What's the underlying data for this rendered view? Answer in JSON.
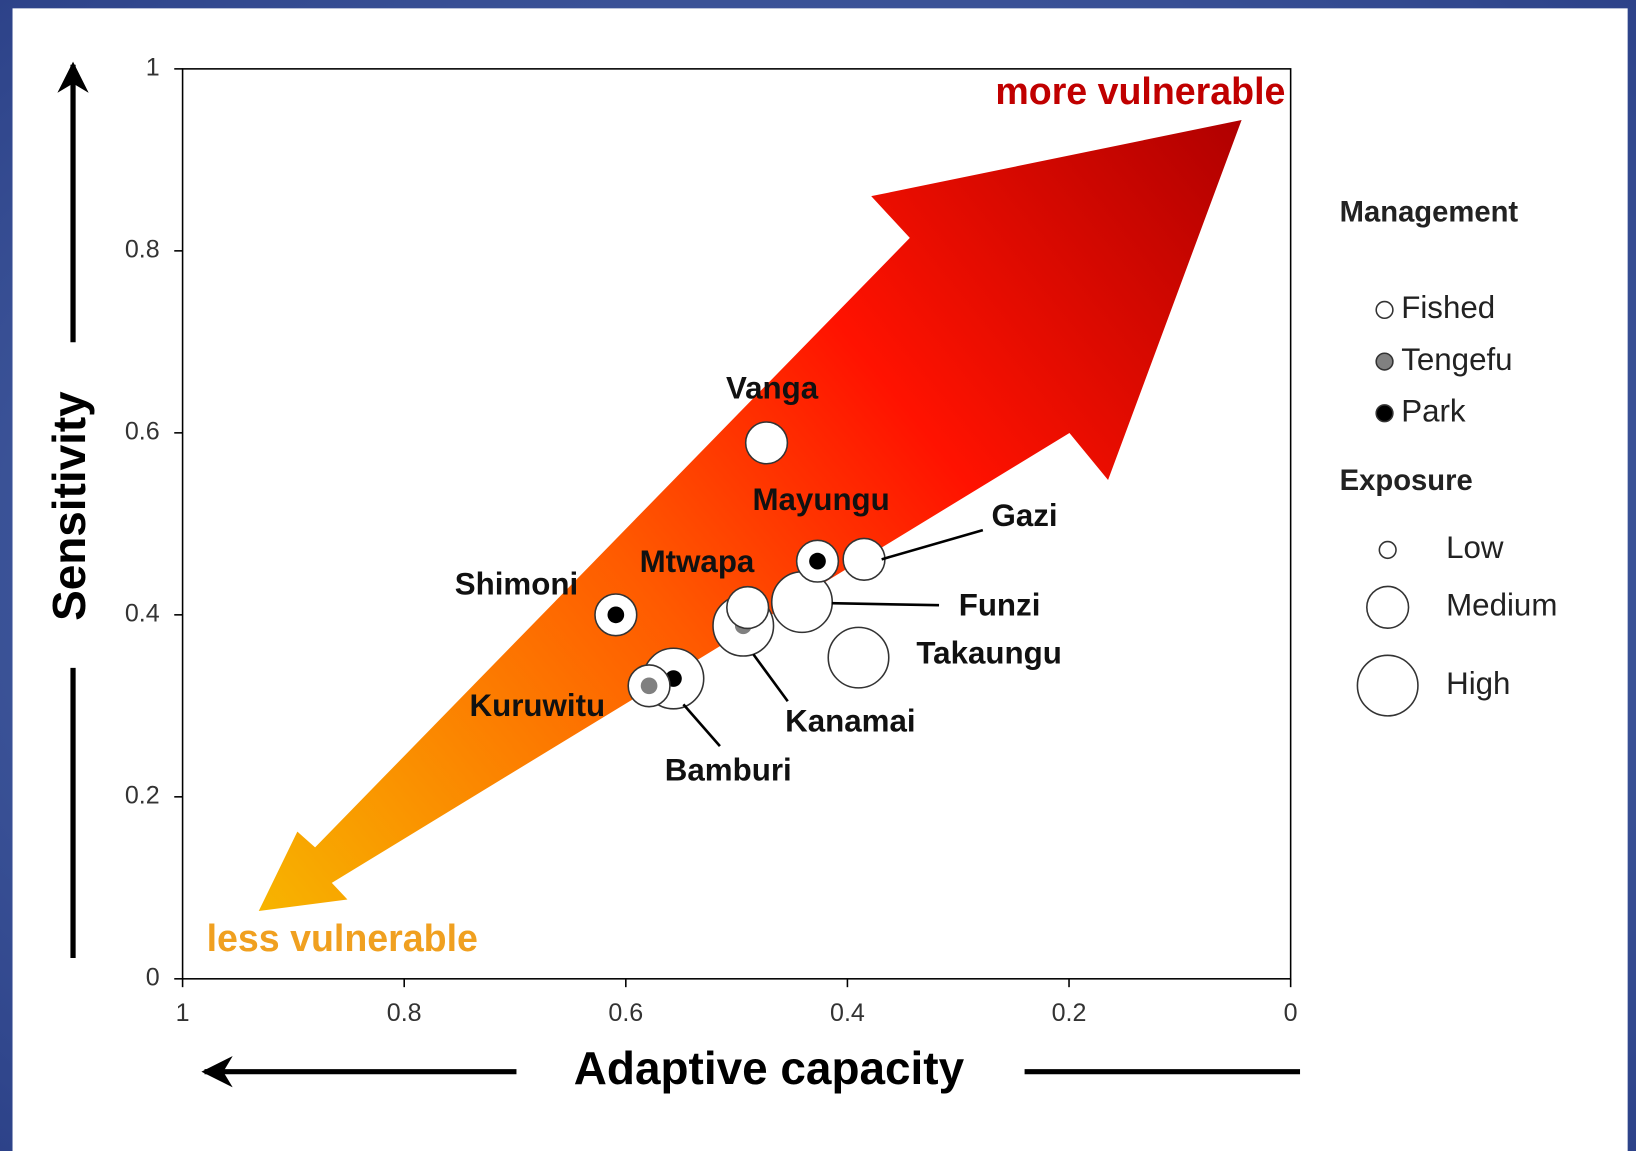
{
  "chart_data": {
    "type": "bubble",
    "x_label": "Adaptive capacity",
    "y_label": "Sensitivity",
    "annotations": {
      "top": "more vulnerable",
      "bottom": "less vulnerable"
    },
    "xlim": [
      1,
      0
    ],
    "xticks": [
      1,
      0.8,
      0.6,
      0.4,
      0.2,
      0
    ],
    "ylim": [
      0,
      1
    ],
    "yticks": [
      0,
      0.2,
      0.4,
      0.6,
      0.8,
      1
    ],
    "points": [
      {
        "name": "Vanga",
        "x": 0.473,
        "y": 0.589,
        "management": "Fished",
        "exposure": "Medium"
      },
      {
        "name": "Mayungu",
        "x": 0.427,
        "y": 0.459,
        "management": "Park",
        "exposure": "Medium"
      },
      {
        "name": "Gazi",
        "x": 0.385,
        "y": 0.461,
        "management": "Fished",
        "exposure": "Medium"
      },
      {
        "name": "Mtwapa",
        "x": 0.49,
        "y": 0.408,
        "management": "Fished",
        "exposure": "Medium"
      },
      {
        "name": "Funzi",
        "x": 0.441,
        "y": 0.414,
        "management": "Fished",
        "exposure": "High"
      },
      {
        "name": "Kanamai",
        "x": 0.494,
        "y": 0.388,
        "management": "Tengefu",
        "exposure": "High"
      },
      {
        "name": "Shimoni",
        "x": 0.609,
        "y": 0.4,
        "management": "Park",
        "exposure": "Medium"
      },
      {
        "name": "Takaungu",
        "x": 0.39,
        "y": 0.353,
        "management": "Fished",
        "exposure": "High"
      },
      {
        "name": "Bamburi",
        "x": 0.557,
        "y": 0.33,
        "management": "Park",
        "exposure": "High"
      },
      {
        "name": "Kuruwitu",
        "x": 0.579,
        "y": 0.322,
        "management": "Tengefu",
        "exposure": "Medium"
      }
    ],
    "legend": {
      "management_title": "Management",
      "management": [
        {
          "name": "Fished",
          "color": "#ffffff"
        },
        {
          "name": "Tengefu",
          "color": "#808080"
        },
        {
          "name": "Park",
          "color": "#000000"
        }
      ],
      "exposure_title": "Exposure",
      "exposure": [
        {
          "name": "Low"
        },
        {
          "name": "Medium"
        },
        {
          "name": "High"
        }
      ]
    }
  }
}
